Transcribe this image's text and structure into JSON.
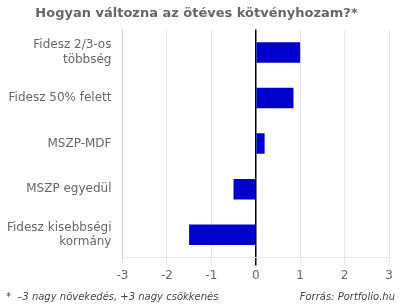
{
  "chart_data": {
    "type": "bar",
    "orientation": "horizontal",
    "title": "Hogyan változna az ötéves kötvényhozam?*",
    "categories": [
      "Fidesz kisebbségi\nkormány",
      "MSZP egyedül",
      "MSZP-MDF",
      "Fidesz 50% felett",
      "Fidesz 2/3-os\ntöbbség"
    ],
    "values": [
      -1.5,
      -0.5,
      0.2,
      0.85,
      1.0
    ],
    "color": "#0000CC",
    "xlim": [
      -3,
      3
    ],
    "xticks": [
      -3,
      -2,
      -1,
      0,
      1,
      2,
      3
    ],
    "grid": true,
    "annotations": [
      "*  –3 nagy növekedés, +3 nagy csökkenés",
      "Forrás: Portfolio.hu"
    ]
  }
}
